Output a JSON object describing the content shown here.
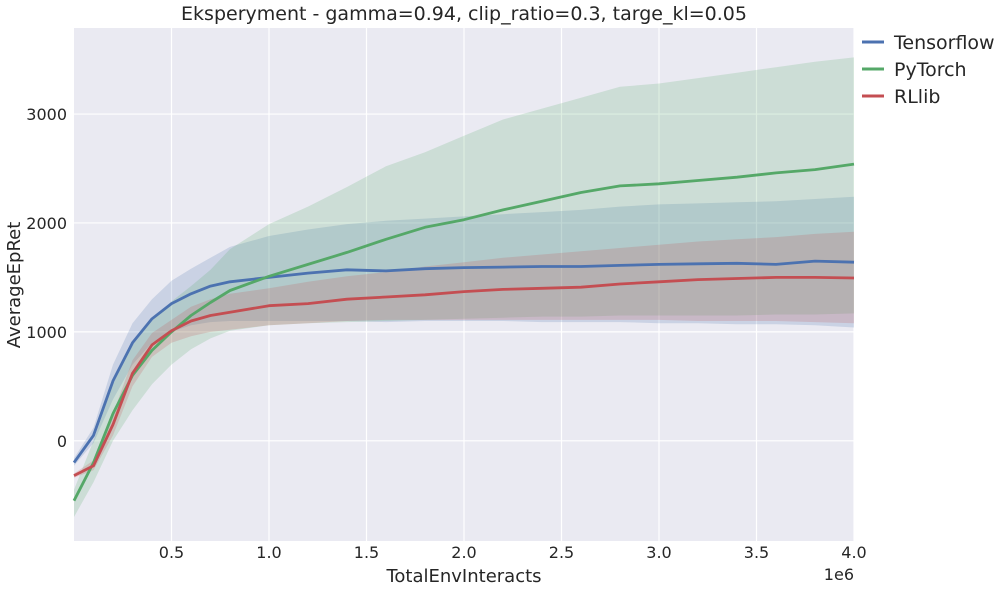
{
  "chart_data": {
    "type": "line",
    "title": "Eksperyment - gamma=0.94, clip_ratio=0.3, targe_kl=0.05",
    "xlabel": "TotalEnvInteracts",
    "ylabel": "AverageEpRet",
    "x_offset_label": "1e6",
    "xlim": [
      0,
      4.0
    ],
    "ylim": [
      -920,
      3790
    ],
    "xticks": [
      0.5,
      1.0,
      1.5,
      2.0,
      2.5,
      3.0,
      3.5,
      4.0
    ],
    "xtick_labels": [
      "0.5",
      "1.0",
      "1.5",
      "2.0",
      "2.5",
      "3.0",
      "3.5",
      "4.0"
    ],
    "yticks": [
      0,
      1000,
      2000,
      3000
    ],
    "ytick_labels": [
      "0",
      "1000",
      "2000",
      "3000"
    ],
    "grid": true,
    "legend_position": "outside-top-right",
    "x": [
      0.0,
      0.1,
      0.2,
      0.3,
      0.4,
      0.5,
      0.6,
      0.7,
      0.8,
      1.0,
      1.2,
      1.4,
      1.6,
      1.8,
      2.0,
      2.2,
      2.4,
      2.6,
      2.8,
      3.0,
      3.2,
      3.4,
      3.6,
      3.8,
      4.0
    ],
    "series": [
      {
        "name": "Tensorflow",
        "color": "#4c72b0",
        "values": [
          -200,
          50,
          550,
          900,
          1120,
          1260,
          1350,
          1420,
          1460,
          1500,
          1540,
          1570,
          1560,
          1580,
          1590,
          1595,
          1600,
          1600,
          1610,
          1620,
          1625,
          1630,
          1620,
          1650,
          1640
        ],
        "lower": [
          -230,
          -20,
          380,
          700,
          900,
          1000,
          1060,
          1090,
          1100,
          1100,
          1100,
          1100,
          1090,
          1100,
          1100,
          1100,
          1090,
          1090,
          1090,
          1080,
          1080,
          1070,
          1070,
          1060,
          1040
        ],
        "upper": [
          -160,
          120,
          700,
          1080,
          1300,
          1470,
          1580,
          1680,
          1780,
          1880,
          1940,
          1990,
          2020,
          2040,
          2060,
          2080,
          2100,
          2120,
          2150,
          2170,
          2180,
          2190,
          2200,
          2220,
          2240
        ]
      },
      {
        "name": "PyTorch",
        "color": "#55a868",
        "values": [
          -550,
          -200,
          250,
          600,
          830,
          1000,
          1150,
          1270,
          1380,
          1510,
          1620,
          1730,
          1850,
          1960,
          2030,
          2120,
          2200,
          2280,
          2340,
          2360,
          2390,
          2420,
          2460,
          2490,
          2540
        ],
        "lower": [
          -700,
          -380,
          0,
          280,
          520,
          700,
          840,
          940,
          1010,
          1060,
          1080,
          1090,
          1100,
          1110,
          1120,
          1130,
          1140,
          1140,
          1150,
          1150,
          1150,
          1150,
          1160,
          1160,
          1170
        ],
        "upper": [
          -450,
          0,
          520,
          880,
          1100,
          1280,
          1420,
          1570,
          1760,
          1990,
          2150,
          2330,
          2520,
          2650,
          2800,
          2950,
          3050,
          3150,
          3250,
          3280,
          3330,
          3380,
          3430,
          3480,
          3520
        ]
      },
      {
        "name": "RLlib",
        "color": "#c44e52",
        "values": [
          -320,
          -230,
          150,
          620,
          880,
          1010,
          1100,
          1150,
          1180,
          1240,
          1260,
          1300,
          1320,
          1340,
          1370,
          1390,
          1400,
          1410,
          1440,
          1460,
          1480,
          1490,
          1500,
          1500,
          1495
        ],
        "lower": [
          -340,
          -270,
          50,
          500,
          770,
          900,
          960,
          1000,
          1020,
          1060,
          1080,
          1100,
          1110,
          1110,
          1110,
          1110,
          1110,
          1110,
          1110,
          1110,
          1100,
          1100,
          1100,
          1090,
          1080
        ],
        "upper": [
          -300,
          -180,
          250,
          740,
          990,
          1110,
          1230,
          1300,
          1350,
          1400,
          1460,
          1510,
          1550,
          1600,
          1640,
          1680,
          1710,
          1740,
          1770,
          1800,
          1830,
          1850,
          1870,
          1900,
          1920
        ]
      }
    ]
  }
}
